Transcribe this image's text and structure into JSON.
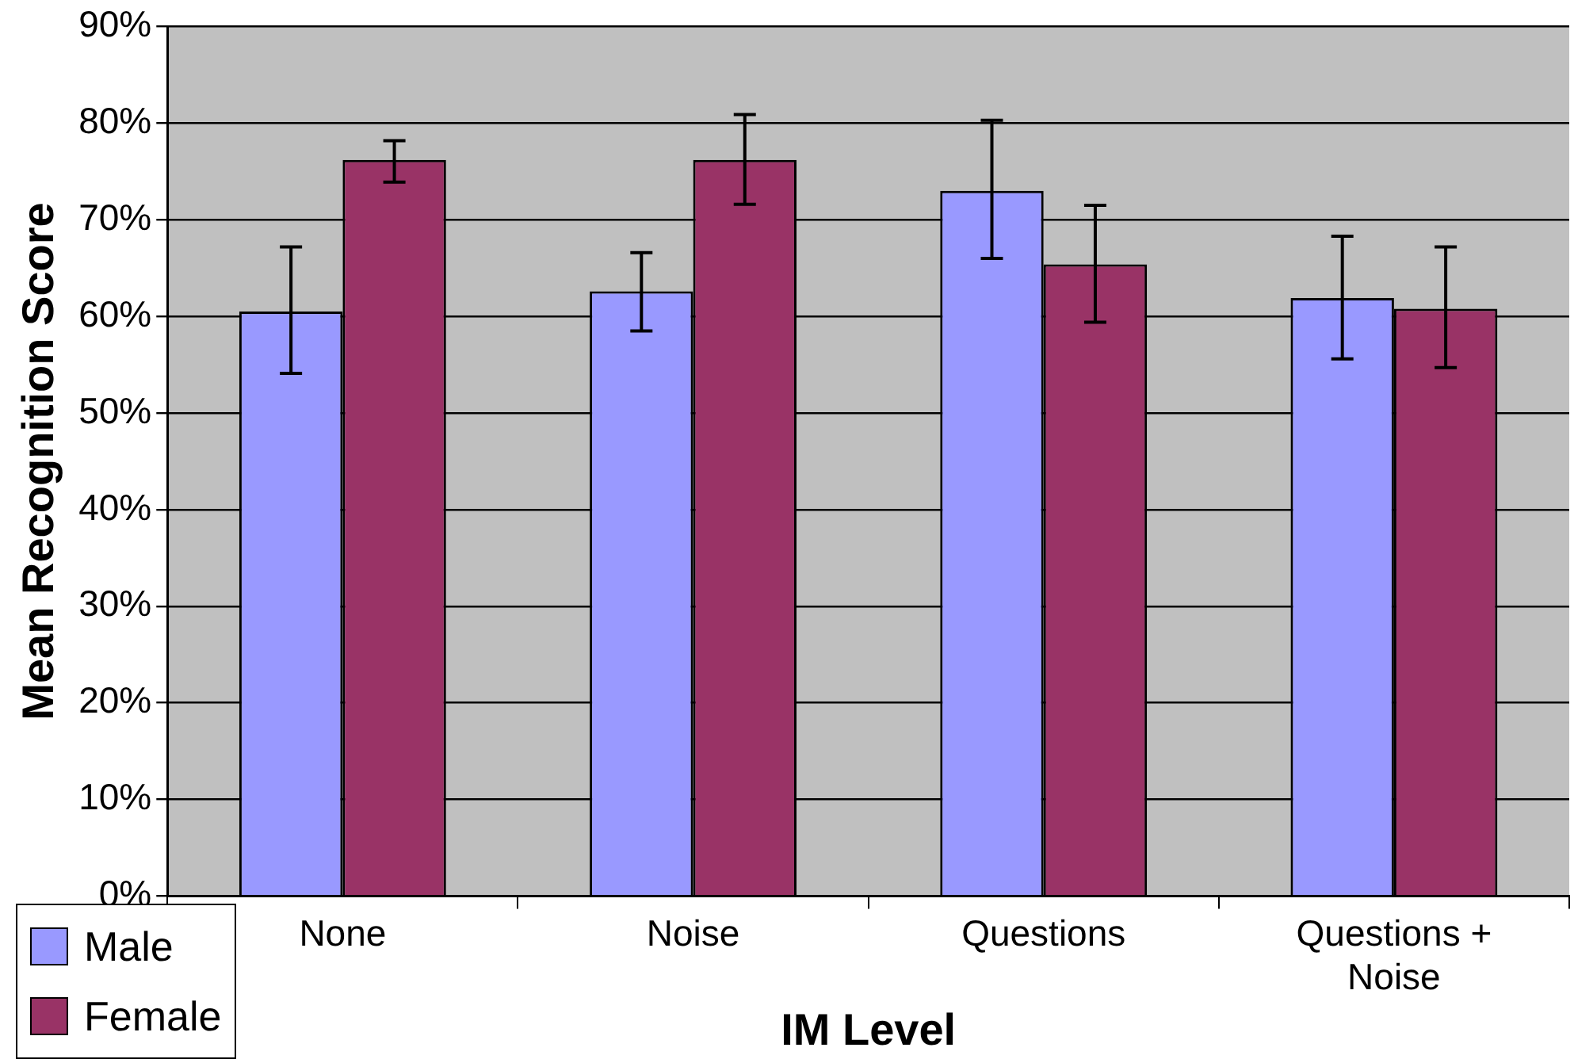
{
  "chart_data": {
    "type": "bar",
    "xlabel": "IM Level",
    "ylabel": "Mean Recognition Score",
    "categories": [
      "None",
      "Noise",
      "Questions",
      "Questions + Noise"
    ],
    "series": [
      {
        "name": "Male",
        "color": "#9999ff",
        "values": [
          60.5,
          62.6,
          73.0,
          61.9
        ],
        "errors": [
          [
            54.1,
            67.2
          ],
          [
            58.5,
            66.6
          ],
          [
            66.0,
            80.3
          ],
          [
            55.6,
            68.3
          ]
        ]
      },
      {
        "name": "Female",
        "color": "#993366",
        "values": [
          76.2,
          76.2,
          65.4,
          60.8
        ],
        "errors": [
          [
            73.9,
            78.2
          ],
          [
            71.6,
            80.9
          ],
          [
            59.4,
            71.5
          ],
          [
            54.7,
            67.2
          ]
        ]
      }
    ],
    "ylim": [
      0,
      90
    ],
    "yticks": [
      {
        "value": 0,
        "label": "0%"
      },
      {
        "value": 10,
        "label": "10%"
      },
      {
        "value": 20,
        "label": "20%"
      },
      {
        "value": 30,
        "label": "30%"
      },
      {
        "value": 40,
        "label": "40%"
      },
      {
        "value": 50,
        "label": "50%"
      },
      {
        "value": 60,
        "label": "60%"
      },
      {
        "value": 70,
        "label": "70%"
      },
      {
        "value": 80,
        "label": "80%"
      },
      {
        "value": 90,
        "label": "90%"
      }
    ],
    "grid": "y",
    "legend": "bottom left"
  }
}
